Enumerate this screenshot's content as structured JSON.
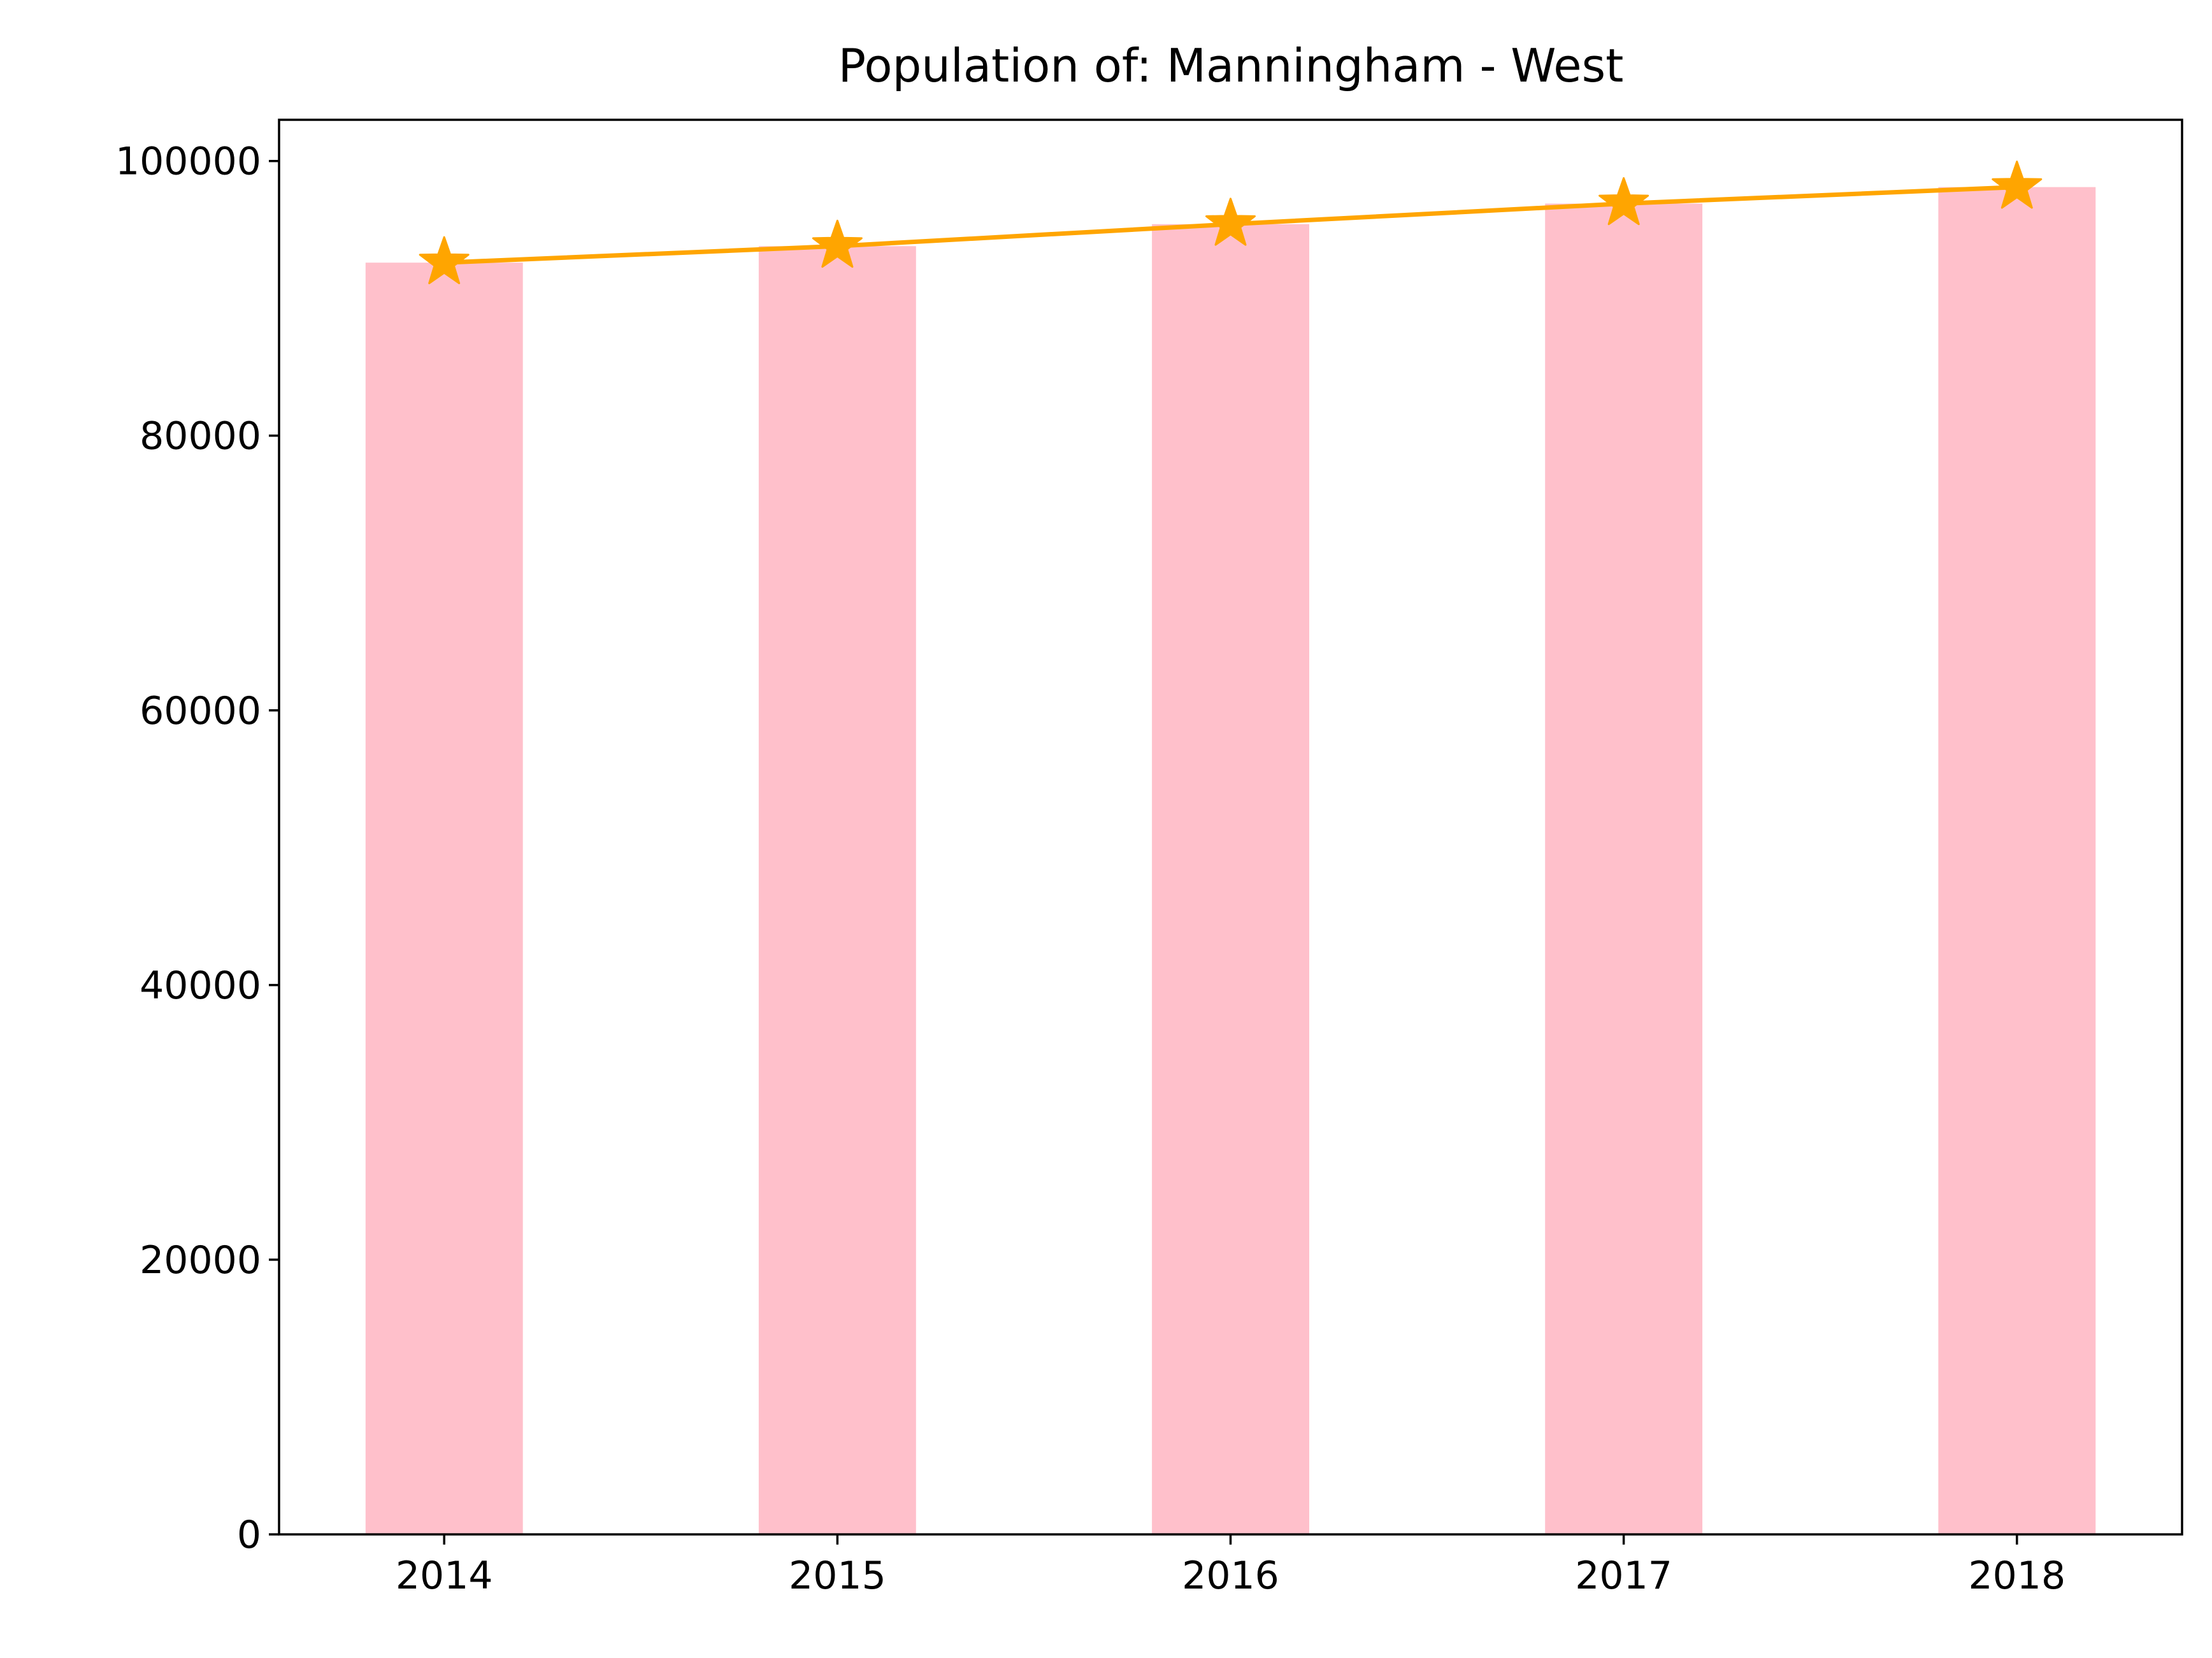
{
  "chart_data": {
    "type": "bar",
    "title": "Population of: Manningham - West",
    "xlabel": "",
    "ylabel": "",
    "categories": [
      "2014",
      "2015",
      "2016",
      "2017",
      "2018"
    ],
    "series": [
      {
        "type": "bar",
        "values": [
          92600,
          93800,
          95400,
          96900,
          98100
        ],
        "color": "#ffc0cb"
      },
      {
        "type": "line",
        "values": [
          92600,
          93800,
          95400,
          96900,
          98100
        ],
        "color": "#ffa500",
        "marker": "star"
      }
    ],
    "ylim": [
      0,
      103000
    ],
    "yticks": [
      0,
      20000,
      40000,
      60000,
      80000,
      100000
    ],
    "grid": false,
    "legend": "none"
  }
}
